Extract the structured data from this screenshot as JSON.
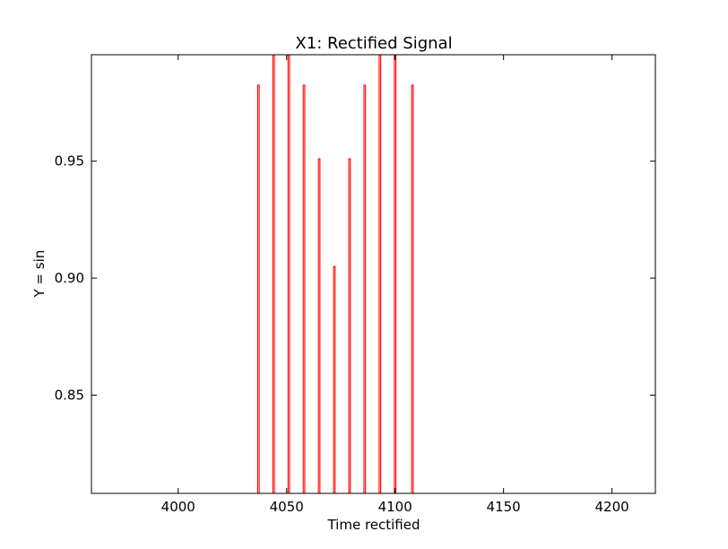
{
  "chart_data": {
    "type": "line",
    "title": "X1: Rectified Signal",
    "xlabel": "Time rectified",
    "ylabel": "Y = sin",
    "xlim": [
      3960,
      4220
    ],
    "ylim": [
      0.808,
      0.9955
    ],
    "xticks": [
      4000,
      4050,
      4100,
      4150,
      4200
    ],
    "yticks": [
      0.85,
      0.9,
      0.95
    ],
    "ytick_labels": [
      "0.85",
      "0.90",
      "0.95"
    ],
    "grid": false,
    "series": [
      {
        "color": "#ff0000",
        "peaks": [
          {
            "x": 4037,
            "y": 0.9825
          },
          {
            "x": 4044,
            "y": 0.9955
          },
          {
            "x": 4051,
            "y": 0.9955
          },
          {
            "x": 4058,
            "y": 0.9825
          },
          {
            "x": 4065,
            "y": 0.951
          },
          {
            "x": 4072,
            "y": 0.905
          },
          {
            "x": 4079,
            "y": 0.951
          },
          {
            "x": 4086,
            "y": 0.9825
          },
          {
            "x": 4093,
            "y": 0.9955
          },
          {
            "x": 4100,
            "y": 0.9955
          },
          {
            "x": 4108,
            "y": 0.9825
          }
        ]
      }
    ]
  }
}
